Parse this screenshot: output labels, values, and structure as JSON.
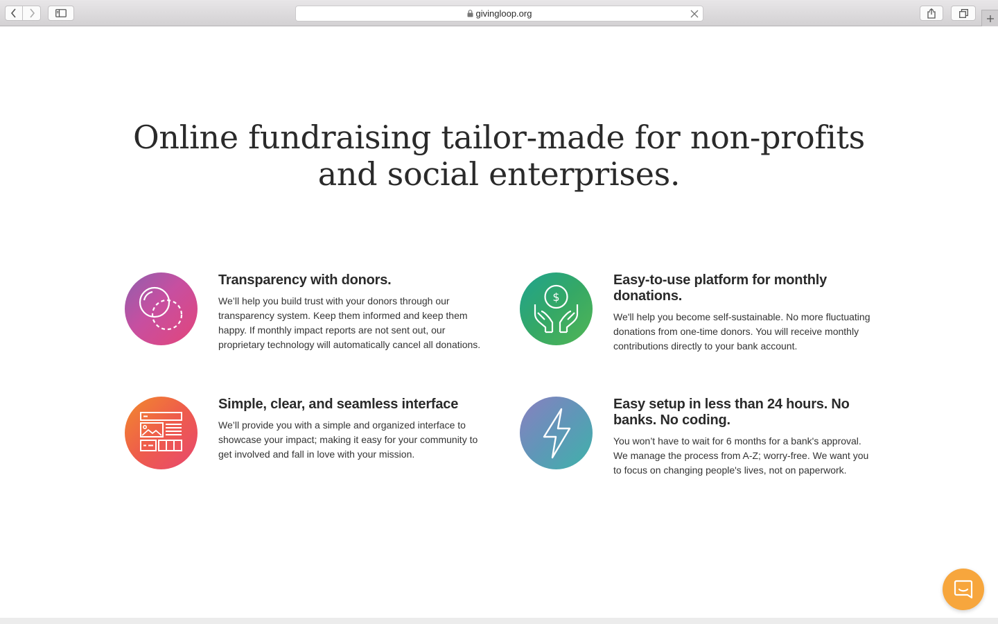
{
  "browser": {
    "url": "givingloop.org",
    "icons": {
      "back": "chevron-left-icon",
      "forward": "chevron-right-icon",
      "sidebar": "sidebar-icon",
      "lock": "lock-icon",
      "close": "close-icon",
      "share": "share-icon",
      "tabs": "tabs-overview-icon",
      "new_tab": "plus-icon"
    }
  },
  "hero": {
    "headline_line1": "Online fundraising tailor-made for non-profits",
    "headline_line2": "and social enterprises."
  },
  "features": [
    {
      "title": "Transparency with donors.",
      "body": "We’ll help you build trust with your donors through our transparency system. Keep them informed and keep them happy. If monthly impact reports are not sent out, our proprietary technology will automatically cancel all donations.",
      "icon": "overlapping-circles-icon",
      "colors": [
        "#8f5fae",
        "#c74fa0",
        "#e3457a"
      ]
    },
    {
      "title": "Easy-to-use platform for monthly donations.",
      "body": "We'll help you become self-sustainable. No more fluctuating donations from one-time donors. You will receive monthly contributions directly to your bank account.",
      "icon": "hands-holding-dollar-icon",
      "colors": [
        "#1fa38f",
        "#35a866",
        "#52b655"
      ]
    },
    {
      "title": "Simple, clear, and seamless interface",
      "body": "We’ll provide you with a simple and organized interface to showcase your impact; making it easy for your community to get involved and fall in love with your mission.",
      "icon": "web-layout-icon",
      "colors": [
        "#f28a2c",
        "#ee5c4c",
        "#e8476f"
      ]
    },
    {
      "title": "Easy setup in less than 24 hours. No banks. No coding.",
      "body": "You won’t have to wait for 6 months for a bank's approval. We manage the process from A-Z; worry-free. We want you to focus on changing people's lives, not on paperwork.",
      "icon": "lightning-bolt-icon",
      "colors": [
        "#8a7fc0",
        "#5f97b8",
        "#3fb2a9"
      ]
    }
  ],
  "chat": {
    "icon": "chat-bubble-icon",
    "color": "#f7a63d"
  }
}
